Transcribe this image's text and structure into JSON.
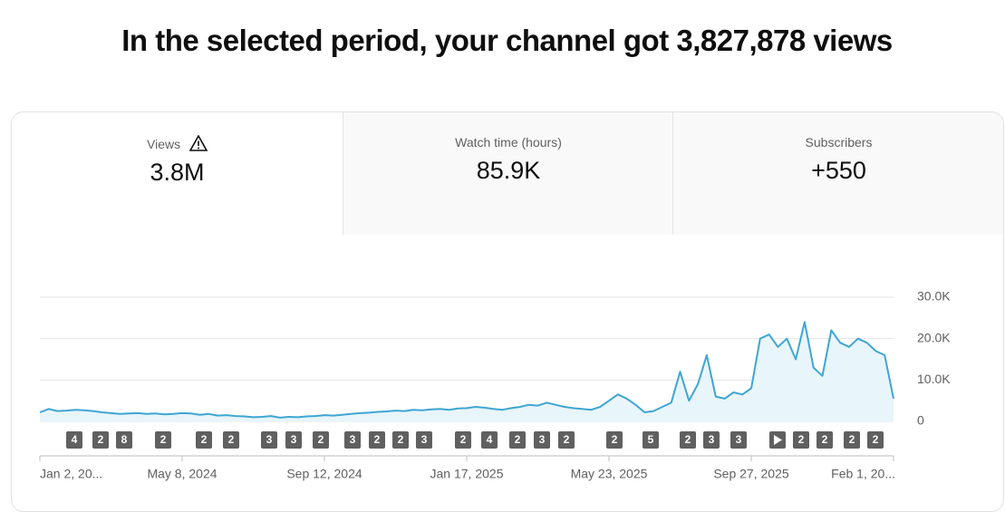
{
  "header": {
    "title": "In the selected period, your channel got 3,827,878 views"
  },
  "tabs": [
    {
      "label": "Views",
      "value": "3.8M"
    },
    {
      "label": "Watch time (hours)",
      "value": "85.9K"
    },
    {
      "label": "Subscribers",
      "value": "+550"
    }
  ],
  "badges": [
    "4",
    "2",
    "8",
    "2",
    "2",
    "2",
    "3",
    "3",
    "2",
    "3",
    "2",
    "2",
    "3",
    "2",
    "4",
    "2",
    "3",
    "2",
    "2",
    "5",
    "2",
    "3",
    "3",
    "2",
    "2",
    "2",
    "2"
  ],
  "chart_data": {
    "type": "line",
    "categories": [
      "Jan 2, 20...",
      null,
      null,
      null,
      null,
      null,
      null,
      null,
      null,
      null,
      null,
      null,
      null,
      null,
      null,
      null,
      "May 8, 2024",
      null,
      null,
      null,
      null,
      null,
      null,
      null,
      null,
      null,
      null,
      null,
      null,
      null,
      null,
      null,
      "Sep 12, 2024",
      null,
      null,
      null,
      null,
      null,
      null,
      null,
      null,
      null,
      null,
      null,
      null,
      null,
      null,
      null,
      "Jan 17, 2025",
      null,
      null,
      null,
      null,
      null,
      null,
      null,
      null,
      null,
      null,
      null,
      null,
      null,
      null,
      null,
      "May 23, 2025",
      null,
      null,
      null,
      null,
      null,
      null,
      null,
      null,
      null,
      null,
      null,
      null,
      null,
      null,
      null,
      "Sep 27, 2025",
      null,
      null,
      null,
      null,
      null,
      null,
      null,
      null,
      null,
      null,
      null,
      null,
      null,
      null,
      null,
      "Feb 1, 20..."
    ],
    "series": [
      {
        "name": "Views",
        "color": "#3ea6d2",
        "values": [
          2200,
          3000,
          2500,
          2600,
          2800,
          2700,
          2500,
          2200,
          2000,
          1800,
          1900,
          2000,
          1800,
          1900,
          1700,
          1800,
          2000,
          1900,
          1600,
          1800,
          1400,
          1500,
          1300,
          1200,
          1000,
          1100,
          1300,
          900,
          1100,
          1000,
          1200,
          1300,
          1500,
          1400,
          1600,
          1800,
          2000,
          2100,
          2300,
          2400,
          2600,
          2500,
          2800,
          2700,
          2900,
          3000,
          2800,
          3100,
          3200,
          3500,
          3300,
          3000,
          2800,
          3200,
          3500,
          4000,
          3800,
          4500,
          4000,
          3500,
          3200,
          3000,
          2800,
          3500,
          5000,
          6500,
          5500,
          4000,
          2200,
          2500,
          3500,
          4500,
          12000,
          5000,
          9000,
          16000,
          6000,
          5500,
          7000,
          6500,
          8000,
          20000,
          21000,
          18000,
          20000,
          15000,
          24000,
          13000,
          11000,
          22000,
          19000,
          18000,
          20000,
          19000,
          17000,
          16000,
          5500
        ]
      }
    ],
    "ylim": [
      0,
      30000
    ],
    "yticks": [
      0,
      {
        "value": 10000,
        "label": "10.0K"
      },
      {
        "value": 20000,
        "label": "20.0K"
      },
      {
        "value": 30000,
        "label": "30.0K"
      }
    ],
    "grid": true
  }
}
